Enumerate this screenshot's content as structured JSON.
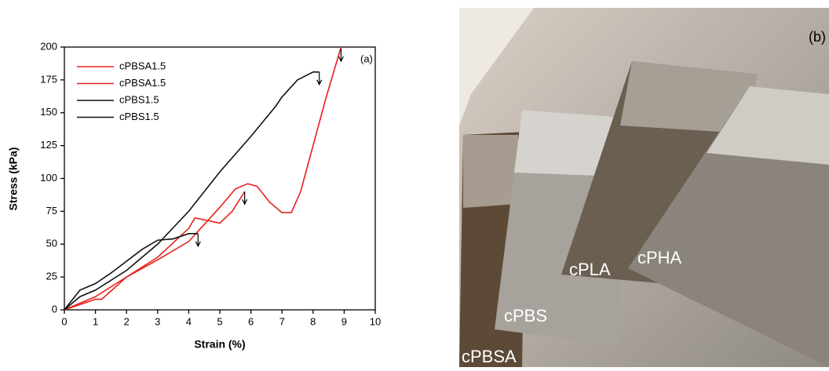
{
  "chart_data": {
    "type": "line",
    "annotation": "(a)",
    "x_label": "Strain (%)",
    "y_label": "Stress (kPa)",
    "xlim": [
      0,
      10
    ],
    "ylim": [
      0,
      200
    ],
    "xticks": [
      0,
      1,
      2,
      3,
      4,
      5,
      6,
      7,
      8,
      9,
      10
    ],
    "yticks": [
      0,
      25,
      50,
      75,
      100,
      125,
      150,
      175,
      200
    ],
    "series": [
      {
        "name": "cPBSA1.5",
        "color": "#e8201c",
        "x": [
          0,
          1,
          2,
          3,
          4,
          4.2,
          4.6,
          5,
          5.4,
          5.8
        ],
        "values": [
          0,
          10,
          25,
          40,
          62,
          70,
          68,
          66,
          75,
          90
        ]
      },
      {
        "name": "cPBSA1.5",
        "color": "#e8201c",
        "x": [
          0,
          1,
          1.2,
          2,
          3,
          4,
          5,
          5.5,
          5.9,
          6.2,
          6.6,
          7,
          7.3,
          7.6,
          8,
          8.4,
          8.9
        ],
        "values": [
          0,
          8,
          8,
          25,
          38,
          52,
          78,
          92,
          96,
          94,
          82,
          74,
          74,
          90,
          125,
          160,
          200
        ]
      },
      {
        "name": "cPBS1.5",
        "color": "#111111",
        "x": [
          0,
          0.5,
          1,
          2,
          3,
          4,
          5,
          6,
          6.8,
          7,
          7.5,
          8,
          8.2
        ],
        "values": [
          0,
          10,
          15,
          30,
          50,
          75,
          105,
          132,
          155,
          162,
          175,
          181,
          181
        ]
      },
      {
        "name": "cPBS1.5",
        "color": "#111111",
        "x": [
          0,
          0.5,
          1,
          1.5,
          2,
          2.5,
          3,
          3.5,
          4,
          4.3
        ],
        "values": [
          0,
          15,
          20,
          28,
          37,
          46,
          53,
          54,
          58,
          58
        ]
      }
    ]
  },
  "photo": {
    "panel_label": "(b)",
    "sample_labels": [
      "cPBSA",
      "cPBS",
      "cPLA",
      "cPHA"
    ]
  }
}
